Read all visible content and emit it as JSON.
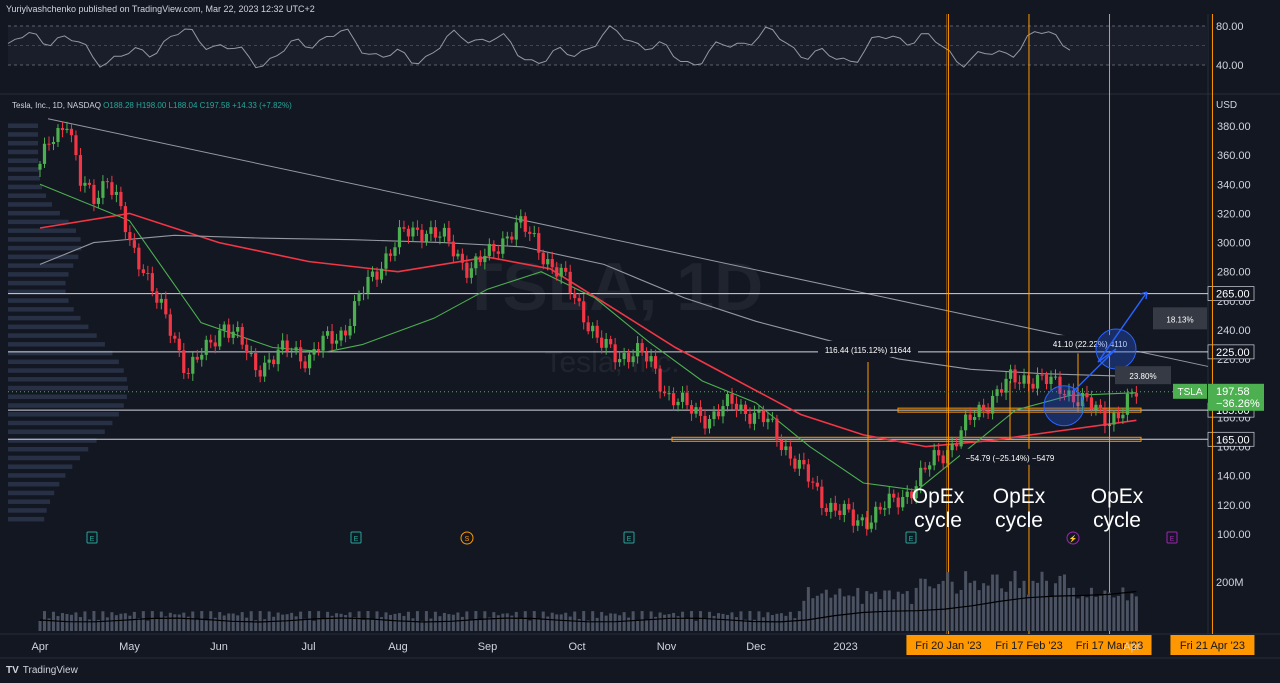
{
  "header": {
    "published": "Yuriylvashchenko published on TradingView.com, Mar 22, 2023 12:32 UTC+2",
    "symbol_line": "Tesla, Inc., 1D, NASDAQ",
    "ohlc": "O188.28 H198.00 L188.04 C197.58 +14.33 (+7.82%)",
    "currency": "USD",
    "watermark_symbol": "TSLA, 1D",
    "watermark_name": "Tesla, Inc."
  },
  "footer": {
    "brand": "TradingView"
  },
  "chart_data": {
    "type": "line",
    "title": "Tesla, Inc., 1D, NASDAQ",
    "ylim": [
      95,
      395
    ],
    "y_ticks": [
      100,
      120,
      140,
      160,
      180,
      200,
      220,
      240,
      260,
      280,
      300,
      320,
      340,
      360,
      380
    ],
    "x_labels": [
      {
        "label": "Apr",
        "m": 0
      },
      {
        "label": "May",
        "m": 1
      },
      {
        "label": "Jun",
        "m": 2
      },
      {
        "label": "Jul",
        "m": 3
      },
      {
        "label": "Aug",
        "m": 4
      },
      {
        "label": "Sep",
        "m": 5
      },
      {
        "label": "Oct",
        "m": 6
      },
      {
        "label": "Nov",
        "m": 7
      },
      {
        "label": "Dec",
        "m": 8
      },
      {
        "label": "2023",
        "m": 9
      },
      {
        "label": "Apr",
        "m": 12.2
      }
    ],
    "price_path": [
      [
        0,
        350
      ],
      [
        0.1,
        370
      ],
      [
        0.3,
        385
      ],
      [
        0.45,
        340
      ],
      [
        0.6,
        332
      ],
      [
        0.75,
        345
      ],
      [
        0.9,
        320
      ],
      [
        1.0,
        300
      ],
      [
        1.15,
        285
      ],
      [
        1.3,
        260
      ],
      [
        1.5,
        235
      ],
      [
        1.65,
        212
      ],
      [
        1.85,
        225
      ],
      [
        2.05,
        245
      ],
      [
        2.2,
        235
      ],
      [
        2.4,
        215
      ],
      [
        2.6,
        220
      ],
      [
        2.8,
        228
      ],
      [
        3.0,
        220
      ],
      [
        3.15,
        230
      ],
      [
        3.4,
        240
      ],
      [
        3.6,
        265
      ],
      [
        3.85,
        290
      ],
      [
        4.05,
        305
      ],
      [
        4.3,
        310
      ],
      [
        4.55,
        300
      ],
      [
        4.8,
        282
      ],
      [
        5.0,
        290
      ],
      [
        5.2,
        305
      ],
      [
        5.35,
        312
      ],
      [
        5.55,
        300
      ],
      [
        5.7,
        285
      ],
      [
        5.85,
        275
      ],
      [
        6.05,
        255
      ],
      [
        6.25,
        230
      ],
      [
        6.45,
        222
      ],
      [
        6.65,
        226
      ],
      [
        6.85,
        215
      ],
      [
        7.0,
        197
      ],
      [
        7.25,
        185
      ],
      [
        7.5,
        180
      ],
      [
        7.75,
        190
      ],
      [
        7.9,
        185
      ],
      [
        8.15,
        175
      ],
      [
        8.35,
        158
      ],
      [
        8.55,
        140
      ],
      [
        8.75,
        123
      ],
      [
        8.95,
        115
      ],
      [
        9.1,
        108
      ],
      [
        9.3,
        113
      ],
      [
        9.55,
        122
      ],
      [
        9.8,
        135
      ],
      [
        10.0,
        152
      ],
      [
        10.2,
        162
      ],
      [
        10.45,
        182
      ],
      [
        10.65,
        195
      ],
      [
        10.85,
        205
      ],
      [
        11.05,
        208
      ],
      [
        11.2,
        205
      ],
      [
        11.45,
        200
      ],
      [
        11.6,
        192
      ],
      [
        11.8,
        185
      ],
      [
        11.95,
        180
      ],
      [
        12.1,
        183
      ],
      [
        12.25,
        197.58
      ]
    ],
    "series": [
      {
        "name": "",
        "type": "ma",
        "color": "#f23645",
        "values": [
          [
            0,
            310
          ],
          [
            1,
            320
          ],
          [
            2,
            300
          ],
          [
            3,
            287
          ],
          [
            4,
            280
          ],
          [
            5,
            290
          ],
          [
            5.7,
            282
          ],
          [
            6.4,
            255
          ],
          [
            7.1,
            228
          ],
          [
            7.8,
            205
          ],
          [
            8.5,
            182
          ],
          [
            9.2,
            168
          ],
          [
            9.9,
            160
          ],
          [
            10.6,
            164
          ],
          [
            11.3,
            170
          ],
          [
            12.25,
            178
          ]
        ]
      },
      {
        "name": "",
        "type": "ma",
        "color": "#4caf50",
        "values": [
          [
            0,
            340
          ],
          [
            1,
            315
          ],
          [
            1.8,
            245
          ],
          [
            2.6,
            228
          ],
          [
            3.2,
            225
          ],
          [
            3.6,
            230
          ],
          [
            4.4,
            248
          ],
          [
            5.0,
            268
          ],
          [
            5.6,
            280
          ],
          [
            6.2,
            262
          ],
          [
            6.8,
            232
          ],
          [
            7.4,
            205
          ],
          [
            8.0,
            190
          ],
          [
            8.6,
            160
          ],
          [
            9.2,
            135
          ],
          [
            9.8,
            130
          ],
          [
            10.3,
            155
          ],
          [
            10.9,
            185
          ],
          [
            11.5,
            195
          ],
          [
            12.25,
            197
          ]
        ]
      },
      {
        "name": "",
        "type": "ma",
        "color": "#9598a1",
        "values": [
          [
            0,
            285
          ],
          [
            0.6,
            300
          ],
          [
            1.5,
            305
          ],
          [
            2.5,
            303
          ],
          [
            3.5,
            302
          ],
          [
            4.5,
            300
          ],
          [
            5.4,
            297
          ],
          [
            6.3,
            285
          ],
          [
            7.2,
            262
          ],
          [
            8.0,
            246
          ],
          [
            8.8,
            233
          ],
          [
            9.6,
            220
          ],
          [
            10.4,
            213
          ],
          [
            11.2,
            210
          ],
          [
            12.25,
            208
          ]
        ]
      }
    ],
    "rsi": {
      "levels": [
        80,
        40
      ],
      "labels": [
        "80.00",
        "40.00"
      ]
    },
    "volume": {
      "label": "200M"
    },
    "horizontal_levels": [
      {
        "label": "265.00",
        "value": 265
      },
      {
        "label": "225.00",
        "value": 225
      },
      {
        "label": "185.00",
        "value": 185
      },
      {
        "label": "165.00",
        "value": 165
      }
    ],
    "current_price": {
      "symbol": "TSLA",
      "price": "197.58",
      "change": "−36.26%",
      "value": 197.58
    },
    "opex_lines": [
      {
        "label": "Fri 20 Jan '23",
        "m": 10.15
      },
      {
        "label": "Fri 17 Feb '23",
        "m": 11.05
      },
      {
        "label": "Fri 17 Mar '23",
        "m": 11.95
      },
      {
        "label": "Fri 21 Apr '23",
        "m": 13.1
      }
    ],
    "opex_text": [
      "OpEx\ncycle",
      "OpEx\ncycle",
      "OpEx\ncycle"
    ],
    "annotations": {
      "measure1": "116.44 (115.12%) 11644",
      "measure2": "−54.79 (−25.14%) −5479",
      "measure3": "41.10 (22.22%) 4110",
      "pct1": "18.13%",
      "pct2": "23.80%"
    },
    "events": [
      "E",
      "E",
      "S",
      "E",
      "E",
      "E"
    ]
  }
}
